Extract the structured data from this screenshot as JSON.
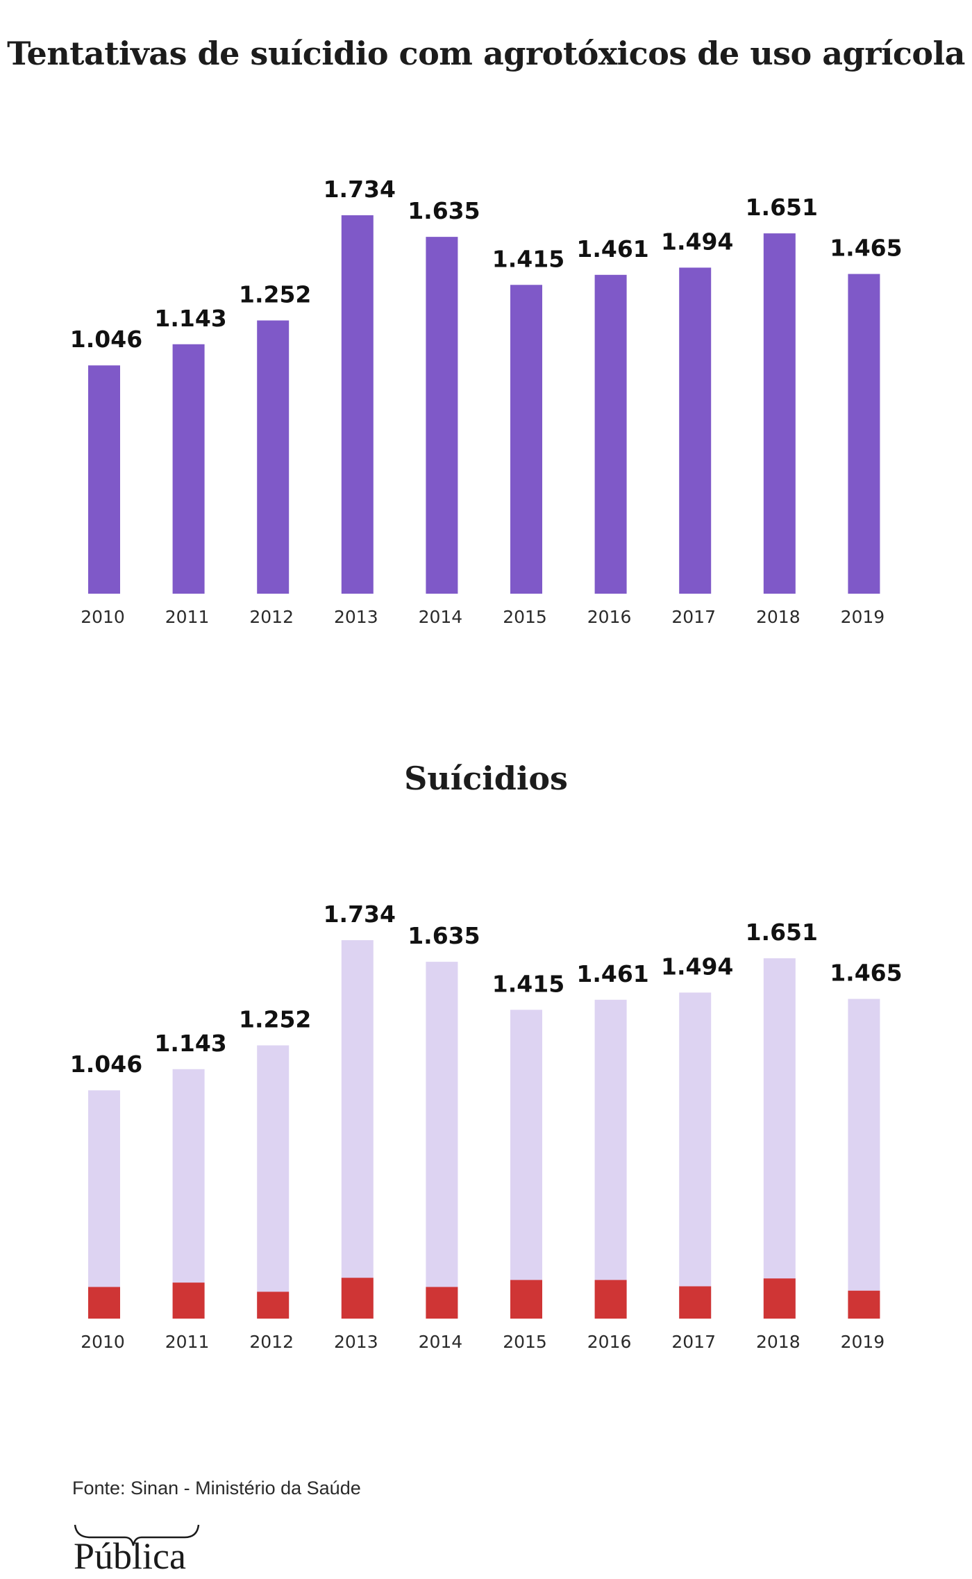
{
  "chart_data": [
    {
      "type": "bar",
      "title": "Tentativas de suícidio com agrotóxicos de uso agrícola",
      "categories": [
        "2010",
        "2011",
        "2012",
        "2013",
        "2014",
        "2015",
        "2016",
        "2017",
        "2018",
        "2019"
      ],
      "values": [
        1046,
        1143,
        1252,
        1734,
        1635,
        1415,
        1461,
        1494,
        1651,
        1465
      ],
      "value_labels": [
        "1.046",
        "1.143",
        "1.252",
        "1.734",
        "1.635",
        "1.415",
        "1.461",
        "1.494",
        "1.651",
        "1.465"
      ],
      "ylim": [
        0,
        1734
      ],
      "grid": false,
      "colors": {
        "bar": "#7f59c8"
      }
    },
    {
      "type": "bar",
      "title": "Suícidios",
      "categories": [
        "2010",
        "2011",
        "2012",
        "2013",
        "2014",
        "2015",
        "2016",
        "2017",
        "2018",
        "2019"
      ],
      "values": [
        1046,
        1143,
        1252,
        1734,
        1635,
        1415,
        1461,
        1494,
        1651,
        1465
      ],
      "value_labels": [
        "1.046",
        "1.143",
        "1.252",
        "1.734",
        "1.635",
        "1.415",
        "1.461",
        "1.494",
        "1.651",
        "1.465"
      ],
      "overlay_values": [
        145,
        165,
        123,
        187,
        145,
        177,
        177,
        148,
        184,
        128
      ],
      "ylim": [
        0,
        1734
      ],
      "grid": false,
      "colors": {
        "bar": "#ddd3f2",
        "overlay": "#cf3535"
      }
    }
  ],
  "footer": {
    "source": "Fonte: Sinan - Ministério da Saúde",
    "logo": "Pública"
  }
}
